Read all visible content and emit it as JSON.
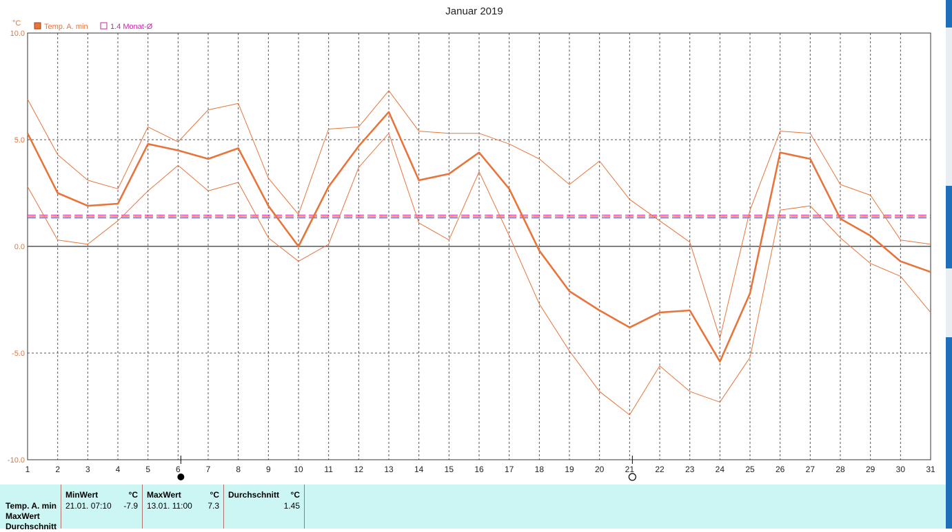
{
  "chart_data": {
    "type": "line",
    "title": "Januar 2019",
    "ylabel": "°C",
    "ylim": [
      -10,
      10
    ],
    "yticks": [
      "10.0",
      "5.0",
      "0.0",
      "-5.0",
      "-10.0"
    ],
    "x": [
      1,
      2,
      3,
      4,
      5,
      6,
      7,
      8,
      9,
      10,
      11,
      12,
      13,
      14,
      15,
      16,
      17,
      18,
      19,
      20,
      21,
      22,
      23,
      24,
      25,
      26,
      27,
      28,
      29,
      30,
      31
    ],
    "xticks": [
      "1",
      "2",
      "3",
      "4",
      "5",
      "6",
      "7",
      "8",
      "9",
      "10",
      "11",
      "12",
      "13",
      "14",
      "15",
      "16",
      "17",
      "18",
      "19",
      "20",
      "21",
      "22",
      "23",
      "24",
      "25",
      "26",
      "27",
      "28",
      "29",
      "30",
      "31"
    ],
    "grid": true,
    "legend": [
      {
        "name": "Temp. A. min",
        "color": "#e8743b"
      },
      {
        "name": "1.4 Monat-Ø",
        "color": "#cc22aa"
      }
    ],
    "series": [
      {
        "name": "Temp. A. min",
        "role": "mean",
        "values": [
          5.3,
          2.5,
          1.9,
          2.0,
          4.8,
          4.5,
          4.1,
          4.6,
          1.9,
          0.0,
          2.8,
          4.7,
          6.3,
          3.1,
          3.4,
          4.4,
          2.7,
          -0.2,
          -2.1,
          -3.0,
          -3.8,
          -3.1,
          -3.0,
          -5.4,
          -2.2,
          4.4,
          4.1,
          1.3,
          0.5,
          -0.7,
          -1.2
        ]
      },
      {
        "role": "max",
        "values": [
          6.9,
          4.3,
          3.1,
          2.7,
          5.6,
          4.9,
          6.4,
          6.7,
          3.2,
          1.5,
          5.5,
          5.6,
          7.3,
          5.4,
          5.3,
          5.3,
          4.8,
          4.1,
          2.9,
          4.0,
          2.2,
          1.2,
          0.2,
          -4.3,
          1.7,
          5.4,
          5.3,
          2.9,
          2.4,
          0.3,
          0.1
        ]
      },
      {
        "role": "min",
        "values": [
          2.8,
          0.3,
          0.1,
          1.2,
          2.6,
          3.8,
          2.6,
          3.0,
          0.4,
          -0.7,
          0.1,
          3.7,
          5.3,
          1.1,
          0.3,
          3.5,
          0.5,
          -2.7,
          -4.9,
          -6.8,
          -7.9,
          -5.6,
          -6.8,
          -7.3,
          -5.2,
          1.7,
          1.9,
          0.4,
          -0.8,
          -1.4,
          -3.1
        ]
      }
    ],
    "reference_lines": [
      {
        "name": "1.4 Monat-Ø",
        "value": 1.4,
        "colors": [
          "#cc22aa",
          "#e8743b",
          "#3a4fb0"
        ]
      }
    ],
    "moon_phases": [
      {
        "day": 6,
        "phase": "new-moon"
      },
      {
        "day": 21,
        "phase": "full-moon"
      }
    ]
  },
  "colors": {
    "series": "#e8743b",
    "grid": "#555555",
    "summary_bg": "#ccf6f4",
    "window_strip": "#1c6fb8"
  },
  "summary": {
    "row_labels": [
      "Temp. A. min",
      "MaxWert",
      "Durchschnitt"
    ],
    "min_header": "MinWert",
    "min_unit": "°C",
    "min_time": "21.01.  07:10",
    "min_value": "-7.9",
    "max_header": "MaxWert",
    "max_unit": "°C",
    "max_time": "13.01.  11:00",
    "max_value": "7.3",
    "avg_header": "Durchschnitt",
    "avg_unit": "°C",
    "avg_value": "1.45"
  }
}
